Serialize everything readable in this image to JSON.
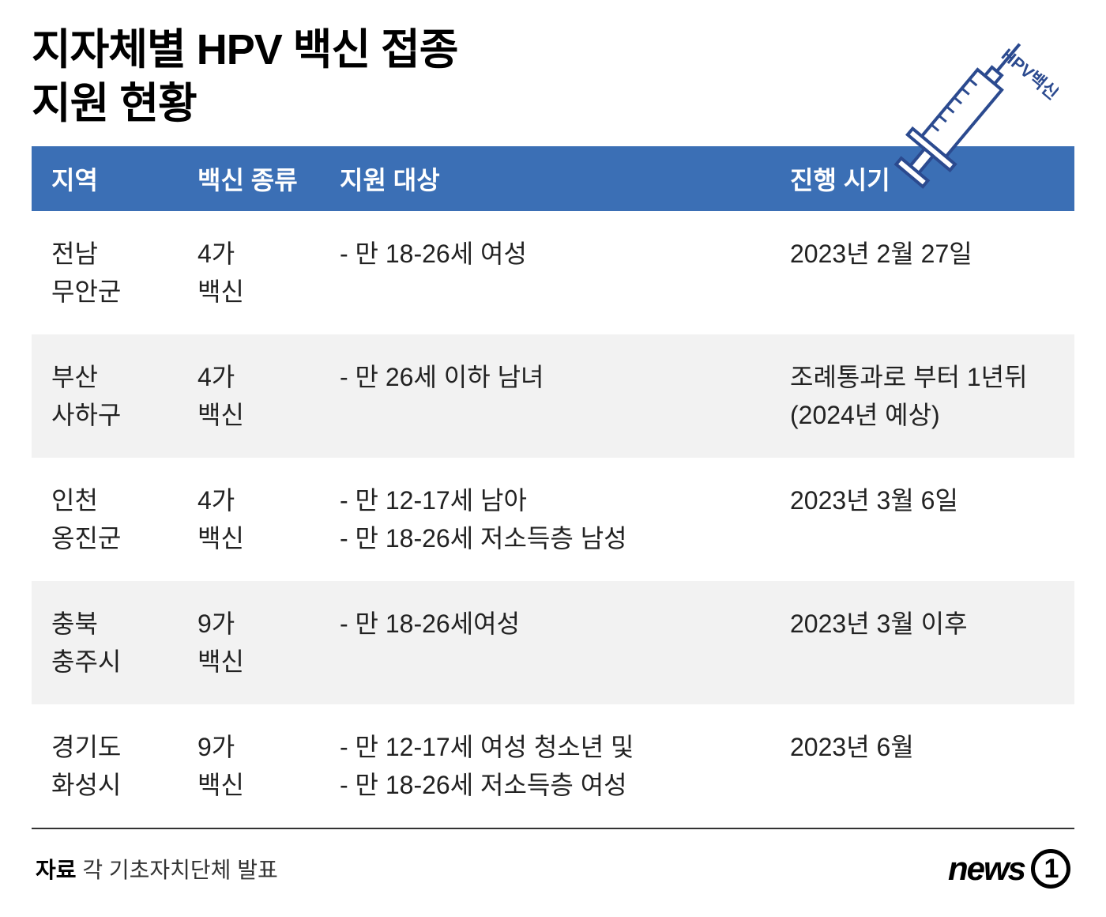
{
  "title_line1": "지자체별 HPV 백신 접종",
  "title_line2": "지원 현황",
  "syringe": {
    "label": "HPV백신",
    "outline_color": "#2b4a8f",
    "body_fill": "#ffffff"
  },
  "table": {
    "header_bg": "#3b6fb5",
    "header_color": "#ffffff",
    "row_alt_bg": "#f2f2f2",
    "border_bottom": "#333333",
    "columns": {
      "region": "지역",
      "vaccine": "백신 종류",
      "target": "지원 대상",
      "timing": "진행 시기"
    },
    "rows": [
      {
        "region_l1": "전남",
        "region_l2": "무안군",
        "vaccine_l1": "4가",
        "vaccine_l2": "백신",
        "target_lines": [
          "- 만 18-26세 여성"
        ],
        "timing_lines": [
          "2023년 2월 27일"
        ]
      },
      {
        "region_l1": "부산",
        "region_l2": "사하구",
        "vaccine_l1": "4가",
        "vaccine_l2": "백신",
        "target_lines": [
          "- 만 26세 이하 남녀"
        ],
        "timing_lines": [
          "조례통과로 부터 1년뒤",
          "(2024년 예상)"
        ]
      },
      {
        "region_l1": "인천",
        "region_l2": "옹진군",
        "vaccine_l1": "4가",
        "vaccine_l2": "백신",
        "target_lines": [
          "- 만 12-17세 남아",
          "- 만 18-26세 저소득층 남성"
        ],
        "timing_lines": [
          "2023년 3월 6일"
        ]
      },
      {
        "region_l1": "충북",
        "region_l2": "충주시",
        "vaccine_l1": "9가",
        "vaccine_l2": "백신",
        "target_lines": [
          "- 만 18-26세여성"
        ],
        "timing_lines": [
          "2023년 3월 이후"
        ]
      },
      {
        "region_l1": "경기도",
        "region_l2": "화성시",
        "vaccine_l1": "9가",
        "vaccine_l2": "백신",
        "target_lines": [
          "- 만 12-17세 여성 청소년 및",
          "- 만 18-26세 저소득층 여성"
        ],
        "timing_lines": [
          "2023년 6월"
        ]
      }
    ]
  },
  "footer": {
    "source_label": "자료",
    "source_text": "각 기초자치단체 발표",
    "logo_text": "news",
    "logo_num": "1"
  },
  "style": {
    "title_fontsize": 54,
    "header_fontsize": 32,
    "cell_fontsize": 32,
    "source_fontsize": 28,
    "col_widths": {
      "region": 210,
      "vaccine": 180,
      "target": 570,
      "timing": 360
    }
  }
}
